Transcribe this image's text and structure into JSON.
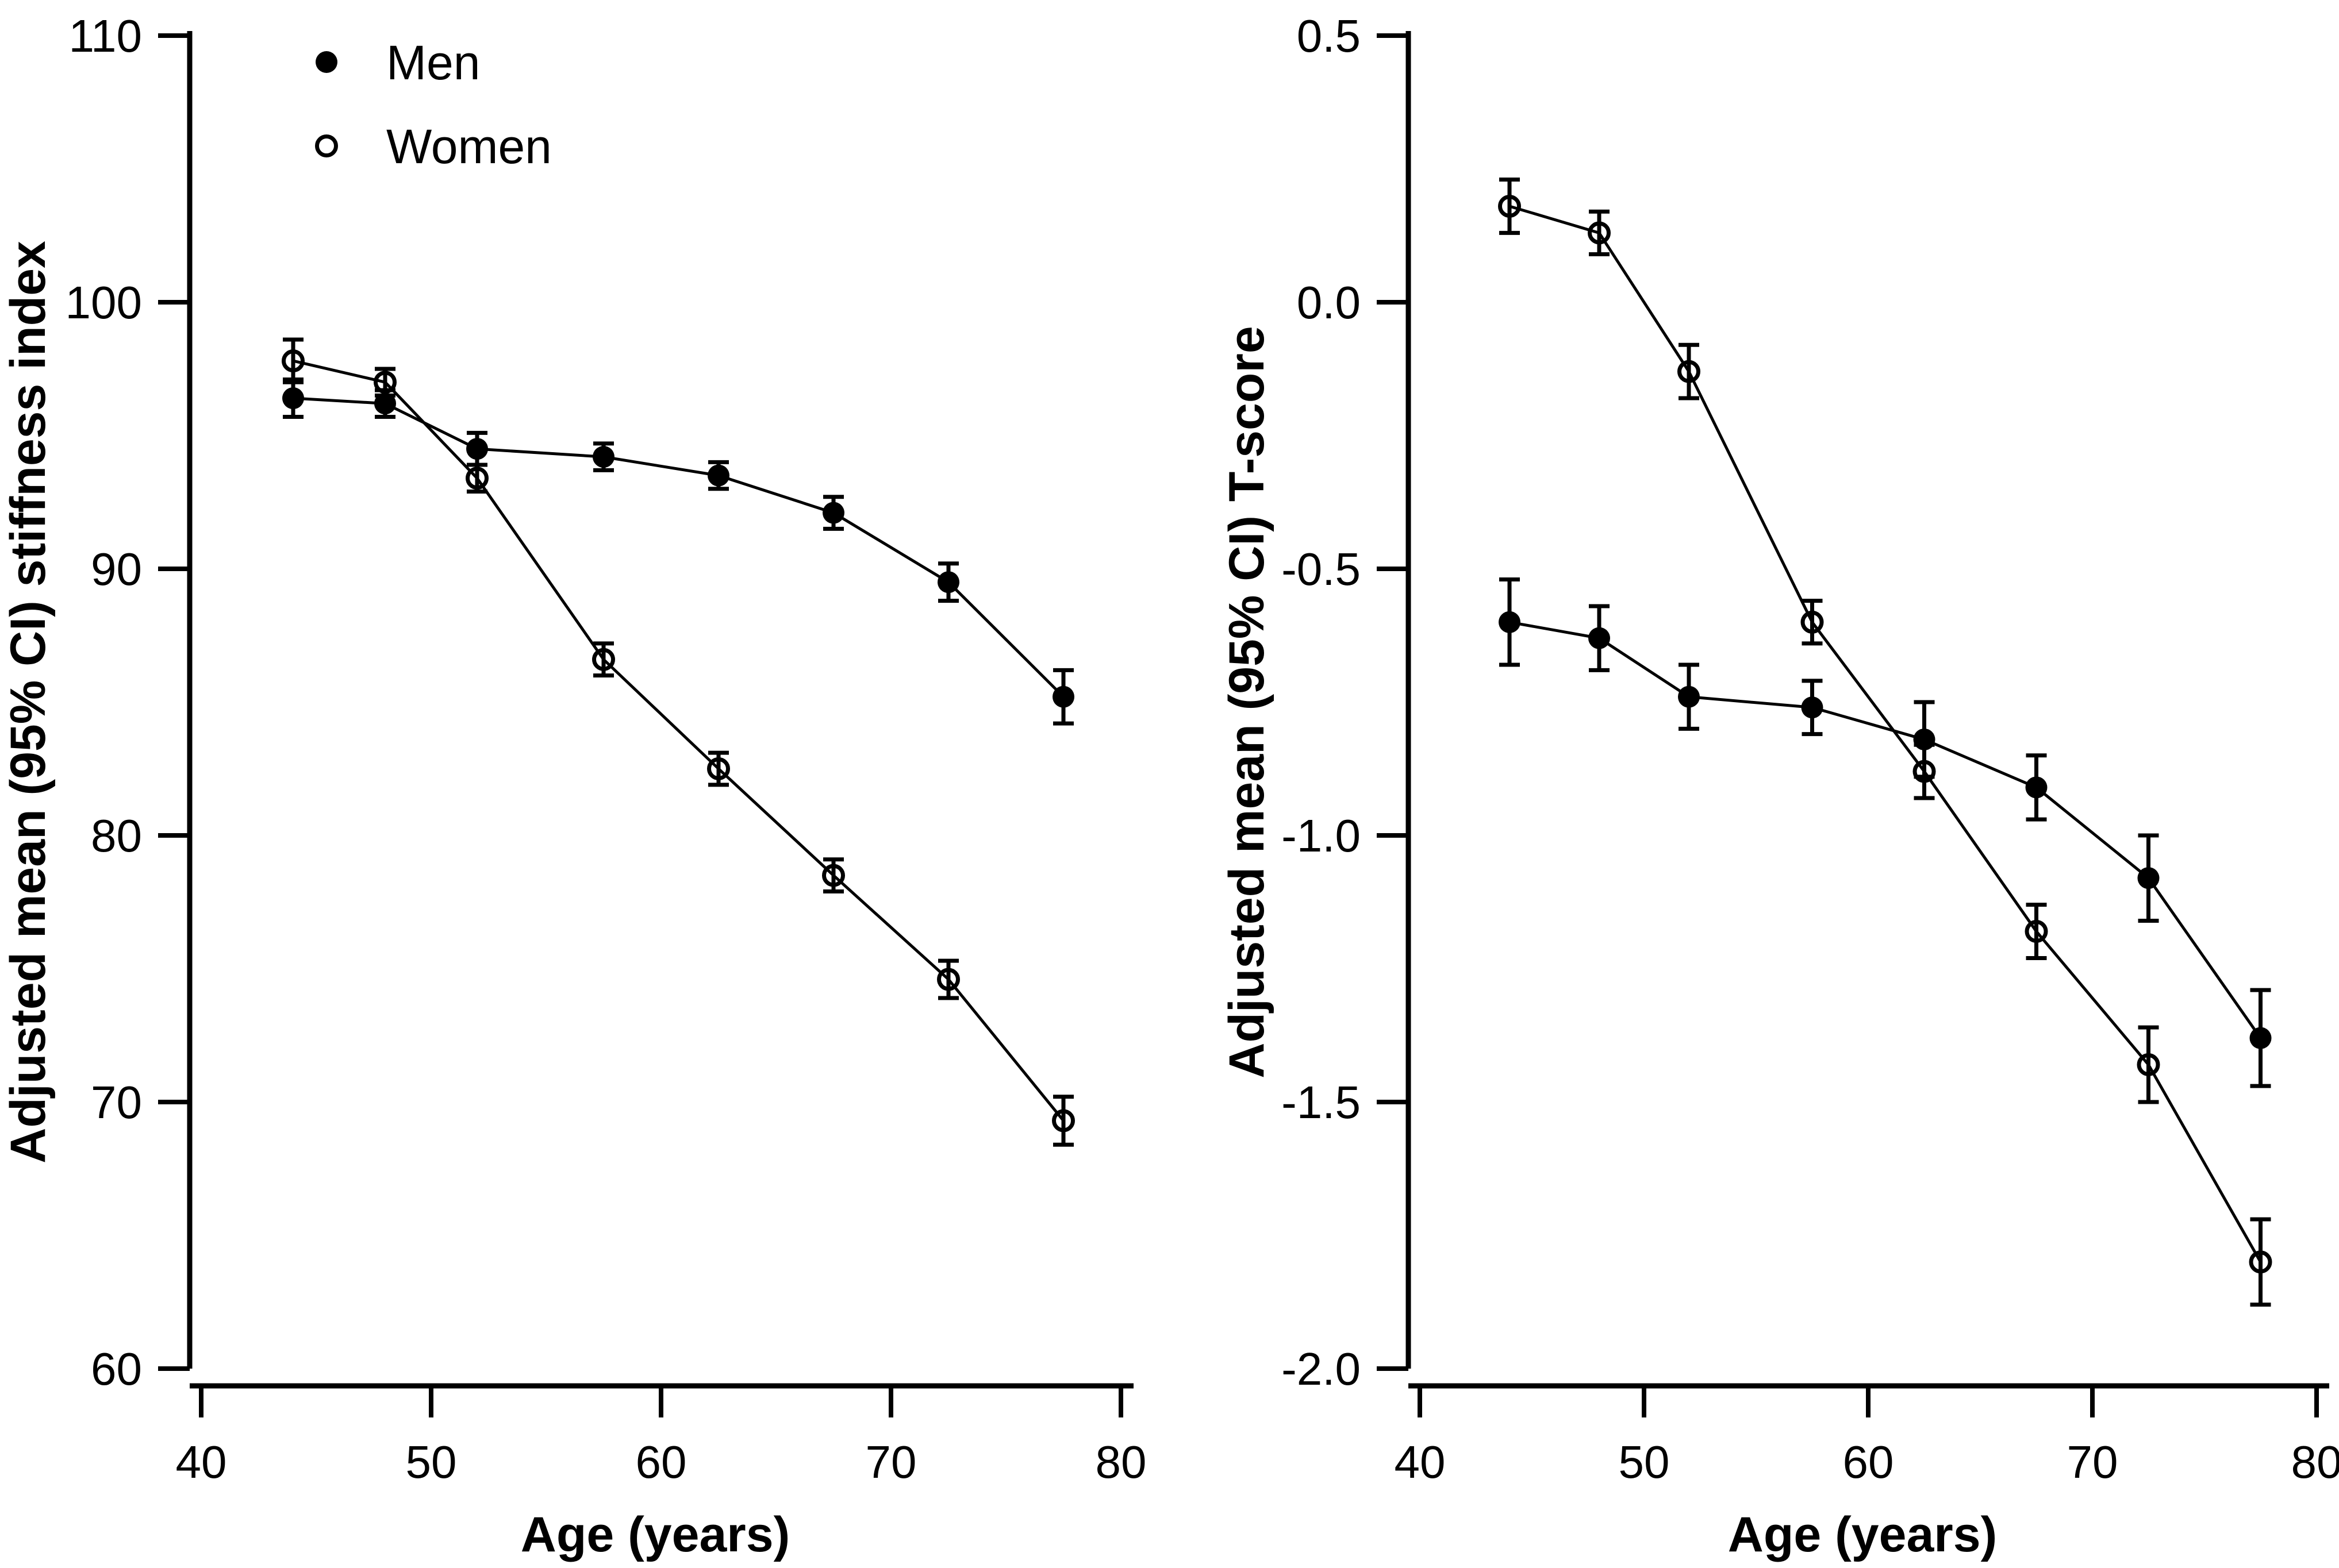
{
  "figure": {
    "background": "#ffffff",
    "ink_color": "#000000",
    "legend": {
      "position": "top-left",
      "items": [
        {
          "label": "Men",
          "marker": "filled-circle"
        },
        {
          "label": "Women",
          "marker": "open-circle"
        }
      ]
    }
  },
  "chart_data": [
    {
      "type": "line",
      "panel": "left",
      "title": "",
      "xlabel": "Age (years)",
      "ylabel": "Adjusted mean (95% CI) stiffness index",
      "xlim": [
        40,
        80
      ],
      "ylim": [
        60,
        110
      ],
      "x_ticks": [
        40,
        50,
        60,
        70,
        80
      ],
      "x_tick_labels": [
        "40",
        "50",
        "60",
        "70",
        "80"
      ],
      "y_ticks": [
        60,
        70,
        80,
        90,
        100,
        110
      ],
      "y_tick_labels": [
        "60",
        "70",
        "80",
        "90",
        "100",
        "110"
      ],
      "grid": false,
      "legend": true,
      "x": [
        44,
        48,
        52,
        57.5,
        62.5,
        67.5,
        72.5,
        77.5
      ],
      "series": [
        {
          "name": "Men",
          "marker": "filled-circle",
          "values": [
            96.4,
            96.2,
            94.5,
            94.2,
            93.5,
            92.1,
            89.5,
            85.2
          ],
          "ci": [
            0.7,
            0.5,
            0.6,
            0.5,
            0.5,
            0.6,
            0.7,
            1.0
          ]
        },
        {
          "name": "Women",
          "marker": "open-circle",
          "values": [
            97.8,
            97.0,
            93.4,
            86.6,
            82.5,
            78.5,
            74.6,
            69.3
          ],
          "ci": [
            0.8,
            0.5,
            0.5,
            0.6,
            0.6,
            0.6,
            0.7,
            0.9
          ]
        }
      ]
    },
    {
      "type": "line",
      "panel": "right",
      "title": "",
      "xlabel": "Age (years)",
      "ylabel": "Adjusted mean (95% CI) T-score",
      "xlim": [
        40,
        80
      ],
      "ylim": [
        -2.0,
        0.5
      ],
      "x_ticks": [
        40,
        50,
        60,
        70,
        80
      ],
      "x_tick_labels": [
        "40",
        "50",
        "60",
        "70",
        "80"
      ],
      "y_ticks": [
        -2.0,
        -1.5,
        -1.0,
        -0.5,
        0.0,
        0.5
      ],
      "y_tick_labels": [
        "-2.0",
        "-1.5",
        "-1.0",
        "-0.5",
        "0.0",
        "0.5"
      ],
      "grid": false,
      "legend": false,
      "x": [
        44,
        48,
        52,
        57.5,
        62.5,
        67.5,
        72.5,
        77.5
      ],
      "series": [
        {
          "name": "Men",
          "marker": "filled-circle",
          "values": [
            -0.6,
            -0.63,
            -0.74,
            -0.76,
            -0.82,
            -0.91,
            -1.08,
            -1.38
          ],
          "ci": [
            0.08,
            0.06,
            0.06,
            0.05,
            0.07,
            0.06,
            0.08,
            0.09
          ]
        },
        {
          "name": "Women",
          "marker": "open-circle",
          "values": [
            0.18,
            0.13,
            -0.13,
            -0.6,
            -0.88,
            -1.18,
            -1.43,
            -1.8
          ],
          "ci": [
            0.05,
            0.04,
            0.05,
            0.04,
            0.05,
            0.05,
            0.07,
            0.08
          ]
        }
      ]
    }
  ]
}
